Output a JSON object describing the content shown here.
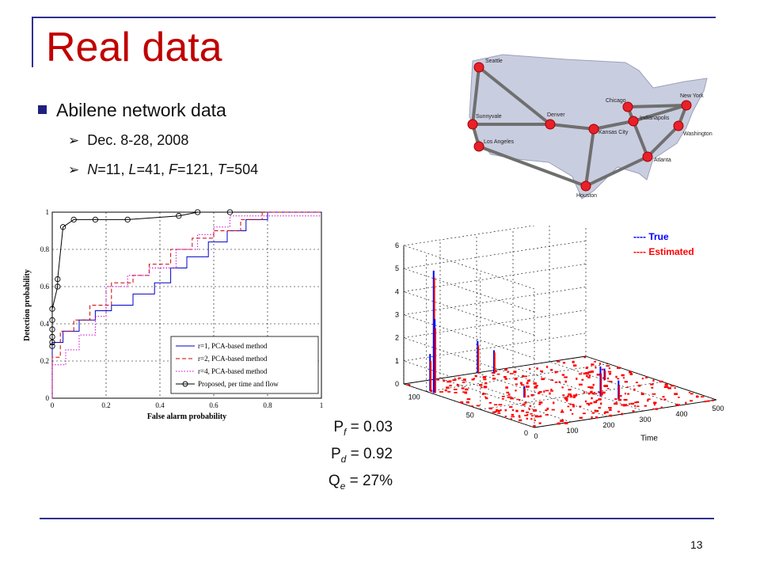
{
  "slide": {
    "title": "Real data",
    "bullet_main": "Abilene network data",
    "sub1": "Dec. 8-28, 2008",
    "sub2": {
      "N": "N",
      "Nval": "=11, ",
      "L": "L",
      "Lval": "=41, ",
      "F": "F",
      "Fval": "=121, ",
      "T": "T",
      "Tval": "=504"
    },
    "page_number": "13",
    "colors": {
      "title": "#c00000",
      "frame": "#2f2f8f",
      "true_series": "#0000ff",
      "estimated_series": "#ff0000"
    }
  },
  "network_map": {
    "cities": [
      "Seattle",
      "Sunnyvale",
      "Los Angeles",
      "Denver",
      "Kansas City",
      "Houston",
      "Chicago",
      "Indianapolis",
      "Atlanta",
      "New York",
      "Washington"
    ],
    "links": [
      [
        "Seattle",
        "Sunnyvale"
      ],
      [
        "Seattle",
        "Denver"
      ],
      [
        "Sunnyvale",
        "Los Angeles"
      ],
      [
        "Sunnyvale",
        "Denver"
      ],
      [
        "Los Angeles",
        "Houston"
      ],
      [
        "Denver",
        "Kansas City"
      ],
      [
        "Kansas City",
        "Houston"
      ],
      [
        "Kansas City",
        "Indianapolis"
      ],
      [
        "Houston",
        "Atlanta"
      ],
      [
        "Chicago",
        "Indianapolis"
      ],
      [
        "Chicago",
        "New York"
      ],
      [
        "Indianapolis",
        "Atlanta"
      ],
      [
        "Atlanta",
        "Washington"
      ],
      [
        "New York",
        "Washington"
      ],
      [
        "Indianapolis",
        "New York"
      ]
    ]
  },
  "metrics": [
    {
      "label": "P",
      "sub": "f",
      "value": " = 0.03"
    },
    {
      "label": "P",
      "sub": "d",
      "value": " = 0.92"
    },
    {
      "label": "Q",
      "sub": "e",
      "value": " = 27%"
    }
  ],
  "chart_data": [
    {
      "type": "line",
      "xlabel": "False alarm probability",
      "ylabel": "Detection probability",
      "xlim": [
        0,
        1
      ],
      "ylim": [
        0,
        1
      ],
      "xticks": [
        "0",
        "0.2",
        "0.4",
        "0.6",
        "0.8",
        "1"
      ],
      "yticks": [
        "0",
        "0.2",
        "0.4",
        "0.6",
        "0.8",
        "1"
      ],
      "grid": true,
      "legend_position": "bottom-right",
      "series": [
        {
          "name": "r=1, PCA-based method",
          "color": "#0000cc",
          "style": "solid",
          "points": [
            [
              0,
              0
            ],
            [
              0,
              0.3
            ],
            [
              0.04,
              0.3
            ],
            [
              0.04,
              0.36
            ],
            [
              0.1,
              0.36
            ],
            [
              0.1,
              0.42
            ],
            [
              0.16,
              0.42
            ],
            [
              0.16,
              0.47
            ],
            [
              0.22,
              0.47
            ],
            [
              0.22,
              0.5
            ],
            [
              0.3,
              0.5
            ],
            [
              0.3,
              0.56
            ],
            [
              0.38,
              0.56
            ],
            [
              0.38,
              0.62
            ],
            [
              0.44,
              0.62
            ],
            [
              0.44,
              0.7
            ],
            [
              0.5,
              0.7
            ],
            [
              0.5,
              0.76
            ],
            [
              0.58,
              0.76
            ],
            [
              0.58,
              0.84
            ],
            [
              0.65,
              0.84
            ],
            [
              0.65,
              0.9
            ],
            [
              0.72,
              0.9
            ],
            [
              0.72,
              0.96
            ],
            [
              0.8,
              0.96
            ],
            [
              0.8,
              1
            ],
            [
              1,
              1
            ]
          ]
        },
        {
          "name": "r=2, PCA-based method",
          "color": "#cc0000",
          "style": "dashed",
          "points": [
            [
              0,
              0
            ],
            [
              0,
              0.22
            ],
            [
              0.03,
              0.22
            ],
            [
              0.03,
              0.36
            ],
            [
              0.08,
              0.36
            ],
            [
              0.08,
              0.42
            ],
            [
              0.14,
              0.42
            ],
            [
              0.14,
              0.5
            ],
            [
              0.22,
              0.5
            ],
            [
              0.22,
              0.62
            ],
            [
              0.3,
              0.62
            ],
            [
              0.3,
              0.66
            ],
            [
              0.36,
              0.66
            ],
            [
              0.36,
              0.72
            ],
            [
              0.44,
              0.72
            ],
            [
              0.44,
              0.8
            ],
            [
              0.52,
              0.8
            ],
            [
              0.52,
              0.86
            ],
            [
              0.6,
              0.86
            ],
            [
              0.6,
              0.9
            ],
            [
              0.7,
              0.9
            ],
            [
              0.7,
              0.96
            ],
            [
              0.78,
              0.96
            ],
            [
              0.78,
              1
            ],
            [
              1,
              1
            ]
          ]
        },
        {
          "name": "r=4, PCA-based method",
          "color": "#cc00cc",
          "style": "dotted",
          "points": [
            [
              0,
              0
            ],
            [
              0,
              0.18
            ],
            [
              0.05,
              0.18
            ],
            [
              0.05,
              0.26
            ],
            [
              0.1,
              0.26
            ],
            [
              0.1,
              0.34
            ],
            [
              0.16,
              0.34
            ],
            [
              0.16,
              0.44
            ],
            [
              0.2,
              0.44
            ],
            [
              0.2,
              0.6
            ],
            [
              0.28,
              0.6
            ],
            [
              0.28,
              0.66
            ],
            [
              0.36,
              0.66
            ],
            [
              0.36,
              0.7
            ],
            [
              0.46,
              0.7
            ],
            [
              0.46,
              0.8
            ],
            [
              0.54,
              0.8
            ],
            [
              0.54,
              0.88
            ],
            [
              0.6,
              0.88
            ],
            [
              0.6,
              0.92
            ],
            [
              0.66,
              0.92
            ],
            [
              0.66,
              0.98
            ],
            [
              1,
              0.98
            ]
          ]
        },
        {
          "name": "Proposed, per time and flow",
          "color": "#000000",
          "style": "solid-circle",
          "points": [
            [
              0,
              0.28
            ],
            [
              0,
              0.3
            ],
            [
              0,
              0.33
            ],
            [
              0,
              0.37
            ],
            [
              0,
              0.42
            ],
            [
              0,
              0.48
            ],
            [
              0.02,
              0.6
            ],
            [
              0.02,
              0.64
            ],
            [
              0.04,
              0.92
            ],
            [
              0.08,
              0.96
            ],
            [
              0.16,
              0.96
            ],
            [
              0.28,
              0.96
            ],
            [
              0.47,
              0.98
            ],
            [
              0.54,
              1
            ],
            [
              0.66,
              1
            ]
          ]
        }
      ]
    },
    {
      "type": "bar3d",
      "zlabel": "",
      "xlabel": "Time",
      "xticks": [
        "0",
        "100",
        "200",
        "300",
        "400",
        "500"
      ],
      "yticks": [
        "0",
        "50",
        "100"
      ],
      "zticks": [
        "0",
        "1",
        "2",
        "3",
        "4",
        "5",
        "6"
      ],
      "xlim": [
        0,
        500
      ],
      "ylim": [
        0,
        121
      ],
      "zlim": [
        0,
        6
      ],
      "legend": [
        {
          "name": "---- True",
          "color": "#0000ff"
        },
        {
          "name": "---- Estimated",
          "color": "#ff0000"
        }
      ],
      "spikes": [
        {
          "t": 5,
          "f": 95,
          "true": 5.3,
          "est": 5.0
        },
        {
          "t": 8,
          "f": 95,
          "true": 3.2,
          "est": 2.8
        },
        {
          "t": 10,
          "f": 100,
          "true": 1.6,
          "est": 1.3
        },
        {
          "t": 200,
          "f": 120,
          "true": 1.4,
          "est": 1.2
        },
        {
          "t": 230,
          "f": 115,
          "true": 1.0,
          "est": 0.9
        },
        {
          "t": 300,
          "f": 40,
          "true": 1.3,
          "est": 1.0
        },
        {
          "t": 320,
          "f": 30,
          "true": 0.8,
          "est": 0.6
        },
        {
          "t": 150,
          "f": 60,
          "true": 0.5,
          "est": 0.4
        },
        {
          "t": 400,
          "f": 70,
          "true": 0.5,
          "est": 0.4
        }
      ]
    }
  ]
}
